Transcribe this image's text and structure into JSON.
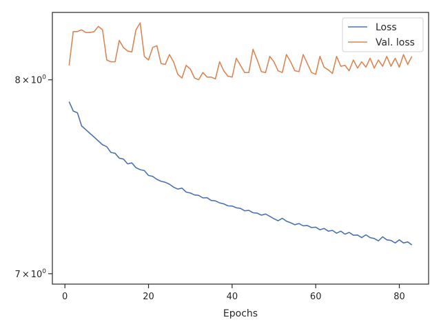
{
  "chart_data": {
    "type": "line",
    "title": "",
    "xlabel": "Epochs",
    "ylabel": "",
    "xlim": [
      -3,
      87
    ],
    "ylim": [
      6.95,
      8.38
    ],
    "yscale": "log",
    "grid": false,
    "legend_position": "top-right",
    "x_ticks": [
      0,
      20,
      40,
      60,
      80
    ],
    "x_tick_labels": [
      "0",
      "20",
      "40",
      "60",
      "80"
    ],
    "y_ticks": [
      7,
      8
    ],
    "y_tick_labels": [
      {
        "base": "7",
        "sep": "×",
        "exp_base": "10",
        "exp": "0"
      },
      {
        "base": "8",
        "sep": "×",
        "exp_base": "10",
        "exp": "0"
      }
    ],
    "series": [
      {
        "name": "Loss",
        "color": "#4c72b0",
        "x": [
          1,
          2,
          3,
          4,
          5,
          6,
          7,
          8,
          9,
          10,
          11,
          12,
          13,
          14,
          15,
          16,
          17,
          18,
          19,
          20,
          21,
          22,
          23,
          24,
          25,
          26,
          27,
          28,
          29,
          30,
          31,
          32,
          33,
          34,
          35,
          36,
          37,
          38,
          39,
          40,
          41,
          42,
          43,
          44,
          45,
          46,
          47,
          48,
          49,
          50,
          51,
          52,
          53,
          54,
          55,
          56,
          57,
          58,
          59,
          60,
          61,
          62,
          63,
          64,
          65,
          66,
          67,
          68,
          69,
          70,
          71,
          72,
          73,
          74,
          75,
          76,
          77,
          78,
          79,
          80,
          81,
          82,
          83
        ],
        "values": [
          7.88,
          7.83,
          7.82,
          7.75,
          7.73,
          7.71,
          7.69,
          7.67,
          7.65,
          7.64,
          7.61,
          7.605,
          7.58,
          7.575,
          7.55,
          7.555,
          7.53,
          7.52,
          7.515,
          7.49,
          7.485,
          7.47,
          7.46,
          7.455,
          7.445,
          7.43,
          7.42,
          7.425,
          7.405,
          7.4,
          7.39,
          7.388,
          7.375,
          7.376,
          7.362,
          7.36,
          7.35,
          7.345,
          7.335,
          7.334,
          7.325,
          7.322,
          7.31,
          7.312,
          7.3,
          7.298,
          7.288,
          7.294,
          7.282,
          7.27,
          7.26,
          7.272,
          7.258,
          7.25,
          7.24,
          7.246,
          7.235,
          7.236,
          7.226,
          7.228,
          7.215,
          7.222,
          7.208,
          7.212,
          7.198,
          7.208,
          7.193,
          7.202,
          7.188,
          7.189,
          7.176,
          7.19,
          7.176,
          7.172,
          7.16,
          7.18,
          7.165,
          7.162,
          7.15,
          7.165,
          7.15,
          7.155,
          7.14
        ]
      },
      {
        "name": "Val. loss",
        "color": "#dd8452",
        "x": [
          1,
          2,
          3,
          4,
          5,
          6,
          7,
          8,
          9,
          10,
          11,
          12,
          13,
          14,
          15,
          16,
          17,
          18,
          19,
          20,
          21,
          22,
          23,
          24,
          25,
          26,
          27,
          28,
          29,
          30,
          31,
          32,
          33,
          34,
          35,
          36,
          37,
          38,
          39,
          40,
          41,
          42,
          43,
          44,
          45,
          46,
          47,
          48,
          49,
          50,
          51,
          52,
          53,
          54,
          55,
          56,
          57,
          58,
          59,
          60,
          61,
          62,
          63,
          64,
          65,
          66,
          67,
          68,
          69,
          70,
          71,
          72,
          73,
          74,
          75,
          76,
          77,
          78,
          79,
          80,
          81,
          82,
          83
        ],
        "values": [
          8.08,
          8.27,
          8.27,
          8.28,
          8.265,
          8.265,
          8.27,
          8.3,
          8.28,
          8.11,
          8.1,
          8.1,
          8.22,
          8.18,
          8.16,
          8.155,
          8.28,
          8.32,
          8.13,
          8.11,
          8.18,
          8.19,
          8.09,
          8.085,
          8.14,
          8.1,
          8.03,
          8.01,
          8.08,
          8.06,
          8.01,
          8.0,
          8.04,
          8.015,
          8.015,
          8.005,
          8.1,
          8.05,
          8.02,
          8.015,
          8.12,
          8.08,
          8.04,
          8.04,
          8.17,
          8.11,
          8.045,
          8.04,
          8.13,
          8.1,
          8.05,
          8.04,
          8.14,
          8.1,
          8.05,
          8.045,
          8.14,
          8.09,
          8.04,
          8.03,
          8.13,
          8.07,
          8.055,
          8.035,
          8.13,
          8.075,
          8.08,
          8.05,
          8.11,
          8.065,
          8.1,
          8.07,
          8.12,
          8.065,
          8.11,
          8.075,
          8.13,
          8.075,
          8.12,
          8.07,
          8.14,
          8.085,
          8.13
        ]
      }
    ]
  }
}
